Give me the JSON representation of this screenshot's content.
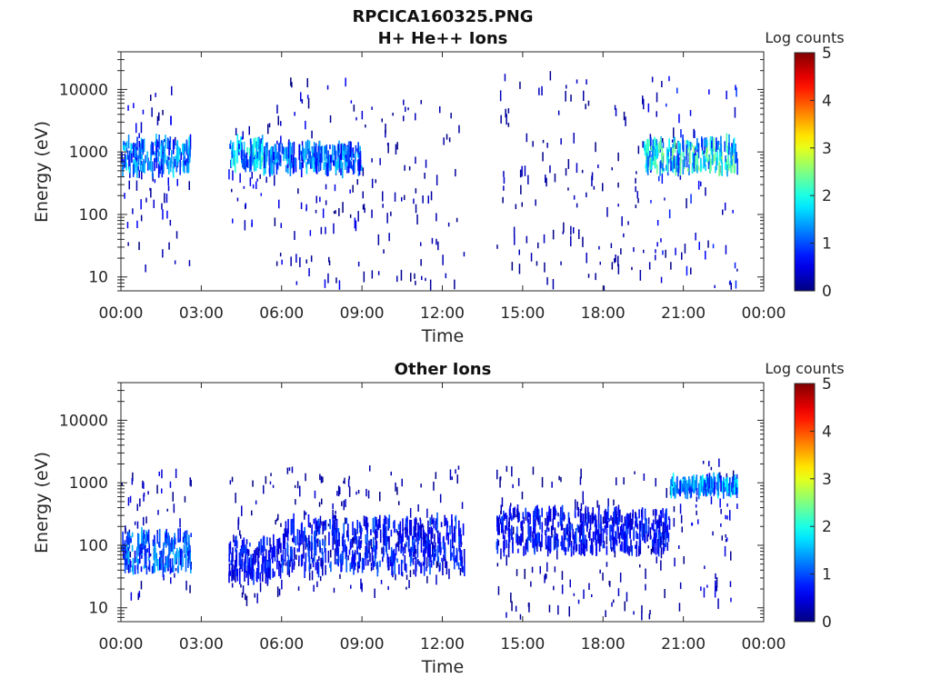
{
  "figure": {
    "title_line1": "RPCICA160325.PNG"
  },
  "chart_data": [
    {
      "type": "heatmap",
      "title": "H+ He++ Ions",
      "xlabel": "Time",
      "ylabel": "Energy (eV)",
      "x_ticks": [
        "00:00",
        "03:00",
        "06:00",
        "09:00",
        "12:00",
        "15:00",
        "18:00",
        "21:00",
        "00:00"
      ],
      "x_range_hours": [
        0,
        24
      ],
      "y_scale": "log",
      "y_range": [
        6,
        40000
      ],
      "y_ticks": [
        10,
        100,
        1000,
        10000
      ],
      "y_tick_labels": [
        "10",
        "100",
        "1000",
        "10000"
      ],
      "colorbar": {
        "label": "Log counts",
        "range": [
          0,
          5
        ],
        "ticks": [
          "0",
          "1",
          "2",
          "3",
          "4",
          "5"
        ],
        "colormap": "jet"
      },
      "activity_segments": [
        {
          "t_start": 0.0,
          "t_end": 2.6,
          "energy_band": [
            500,
            1500
          ],
          "level": 1.8,
          "scatter_range": [
            15,
            12000
          ]
        },
        {
          "t_start": 4.0,
          "t_end": 5.3,
          "energy_band": [
            600,
            1500
          ],
          "level": 2.3,
          "scatter_range": [
            60,
            3000
          ]
        },
        {
          "t_start": 5.3,
          "t_end": 9.0,
          "energy_band": [
            500,
            1200
          ],
          "level": 1.7,
          "scatter_range": [
            8,
            20000
          ]
        },
        {
          "t_start": 9.0,
          "t_end": 12.8,
          "energy_band": [
            null,
            null
          ],
          "level": 0.9,
          "scatter_range": [
            6,
            8000
          ]
        },
        {
          "t_start": 14.0,
          "t_end": 19.5,
          "energy_band": [
            null,
            null
          ],
          "level": 1.0,
          "scatter_range": [
            6,
            20000
          ]
        },
        {
          "t_start": 19.5,
          "t_end": 23.0,
          "energy_band": [
            500,
            1500
          ],
          "level": 2.6,
          "scatter_range": [
            6,
            20000
          ]
        }
      ]
    },
    {
      "type": "heatmap",
      "title": "Other Ions",
      "xlabel": "Time",
      "ylabel": "Energy (eV)",
      "x_ticks": [
        "00:00",
        "03:00",
        "06:00",
        "09:00",
        "12:00",
        "15:00",
        "18:00",
        "21:00",
        "00:00"
      ],
      "x_range_hours": [
        0,
        24
      ],
      "y_scale": "log",
      "y_range": [
        6,
        40000
      ],
      "y_ticks": [
        10,
        100,
        1000,
        10000
      ],
      "y_tick_labels": [
        "10",
        "100",
        "1000",
        "10000"
      ],
      "colorbar": {
        "label": "Log counts",
        "range": [
          0,
          5
        ],
        "ticks": [
          "0",
          "1",
          "2",
          "3",
          "4",
          "5"
        ],
        "colormap": "jet"
      },
      "activity_segments": [
        {
          "t_start": 0.0,
          "t_end": 2.6,
          "energy_band": [
            40,
            150
          ],
          "level": 1.6,
          "scatter_range": [
            15,
            2000
          ]
        },
        {
          "t_start": 4.0,
          "t_end": 6.0,
          "energy_band": [
            30,
            120
          ],
          "level": 1.0,
          "scatter_range": [
            15,
            1500
          ]
        },
        {
          "t_start": 6.0,
          "t_end": 12.8,
          "energy_band": [
            40,
            250
          ],
          "level": 1.1,
          "scatter_range": [
            20,
            2000
          ]
        },
        {
          "t_start": 14.0,
          "t_end": 20.5,
          "energy_band": [
            80,
            350
          ],
          "level": 1.0,
          "scatter_range": [
            7,
            2000
          ]
        },
        {
          "t_start": 20.5,
          "t_end": 23.0,
          "energy_band": [
            700,
            1100
          ],
          "level": 1.9,
          "scatter_range": [
            12,
            2500
          ]
        }
      ]
    }
  ]
}
